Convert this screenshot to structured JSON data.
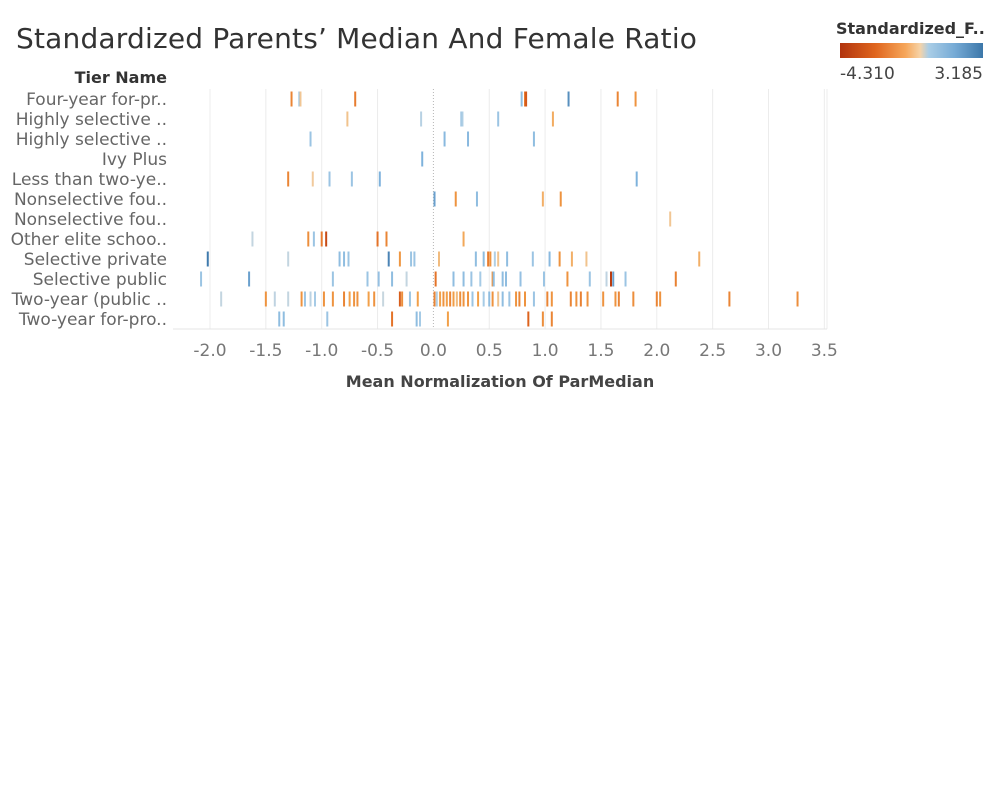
{
  "title": "Standardized Parents’ Median And Female Ratio",
  "legend": {
    "title": "Standardized_F..",
    "min_label": "-4.310",
    "max_label": "3.185",
    "color_low": "#b1340e",
    "color_mid": "#f6d3a7",
    "color_high": "#3c77a9"
  },
  "chart_data": {
    "type": "scatter",
    "mark": "tick",
    "row_header": "Tier Name",
    "xlabel": "Mean Normalization Of ParMedian",
    "xlim": [
      -2.3,
      3.5
    ],
    "xticks": [
      "-2.0",
      "-1.5",
      "-1.0",
      "-0.5",
      "0.0",
      "0.5",
      "1.0",
      "1.5",
      "2.0",
      "2.5",
      "3.0",
      "3.5"
    ],
    "color_range": [
      -4.31,
      3.185
    ],
    "grid": true,
    "rows": [
      {
        "label": "Four-year for-pr..",
        "points": [
          [
            -1.27,
            -1.8
          ],
          [
            -1.2,
            1.0
          ],
          [
            -1.19,
            -0.2
          ],
          [
            -0.7,
            -2.0
          ],
          [
            0.79,
            1.2
          ],
          [
            0.82,
            -2.0
          ],
          [
            0.83,
            -3.0
          ],
          [
            1.21,
            2.5
          ],
          [
            1.65,
            -1.8
          ],
          [
            1.81,
            -1.5
          ]
        ]
      },
      {
        "label": "Highly selective ..",
        "points": [
          [
            -0.77,
            -0.3
          ],
          [
            -0.11,
            0.4
          ],
          [
            0.25,
            1.0
          ],
          [
            0.26,
            0.6
          ],
          [
            0.58,
            1.0
          ],
          [
            1.07,
            -0.9
          ]
        ]
      },
      {
        "label": "Highly selective ..",
        "points": [
          [
            -1.1,
            1.0
          ],
          [
            0.1,
            1.3
          ],
          [
            0.31,
            1.3
          ],
          [
            0.9,
            1.2
          ]
        ]
      },
      {
        "label": "Ivy Plus",
        "points": [
          [
            -0.1,
            1.5
          ]
        ]
      },
      {
        "label": "Less than two-ye..",
        "points": [
          [
            -1.3,
            -1.8
          ],
          [
            -1.08,
            -0.1
          ],
          [
            -0.93,
            1.0
          ],
          [
            -0.73,
            1.0
          ],
          [
            -0.48,
            1.5
          ],
          [
            1.82,
            1.5
          ]
        ]
      },
      {
        "label": "Nonselective fou..",
        "points": [
          [
            0.01,
            2.0
          ],
          [
            0.2,
            -1.5
          ],
          [
            0.39,
            1.2
          ],
          [
            0.98,
            -0.8
          ],
          [
            1.14,
            -1.5
          ]
        ]
      },
      {
        "label": "Nonselective fou..",
        "points": [
          [
            2.12,
            -0.2
          ]
        ]
      },
      {
        "label": "Other elite schoo..",
        "points": [
          [
            -1.62,
            0.1
          ],
          [
            -1.12,
            -1.6
          ],
          [
            -1.07,
            1.0
          ],
          [
            -1.0,
            -2.0
          ],
          [
            -0.96,
            -3.5
          ],
          [
            -0.5,
            -2.2
          ],
          [
            -0.42,
            -1.8
          ],
          [
            0.27,
            -1.0
          ]
        ]
      },
      {
        "label": "Selective private",
        "points": [
          [
            -2.02,
            3.1
          ],
          [
            -1.3,
            0.1
          ],
          [
            -0.84,
            1.2
          ],
          [
            -0.8,
            1.2
          ],
          [
            -0.76,
            1.0
          ],
          [
            -0.4,
            2.8
          ],
          [
            -0.3,
            -1.4
          ],
          [
            -0.2,
            1.0
          ],
          [
            -0.17,
            1.0
          ],
          [
            0.05,
            -0.5
          ],
          [
            0.38,
            1.2
          ],
          [
            0.45,
            1.2
          ],
          [
            0.49,
            -2.0
          ],
          [
            0.51,
            -1.5
          ],
          [
            0.55,
            0.5
          ],
          [
            0.58,
            -0.3
          ],
          [
            0.66,
            1.2
          ],
          [
            0.89,
            1.0
          ],
          [
            1.04,
            1.3
          ],
          [
            1.13,
            -1.5
          ],
          [
            1.24,
            -0.8
          ],
          [
            1.37,
            -0.3
          ],
          [
            2.38,
            -0.8
          ]
        ]
      },
      {
        "label": "Selective public",
        "points": [
          [
            -2.08,
            1.0
          ],
          [
            -1.65,
            2.0
          ],
          [
            -0.9,
            1.0
          ],
          [
            -0.59,
            1.0
          ],
          [
            -0.49,
            1.1
          ],
          [
            -0.37,
            1.2
          ],
          [
            -0.24,
            0.1
          ],
          [
            0.02,
            -2.2
          ],
          [
            0.18,
            1.2
          ],
          [
            0.27,
            1.2
          ],
          [
            0.34,
            1.0
          ],
          [
            0.42,
            0.8
          ],
          [
            0.53,
            -1.5
          ],
          [
            0.54,
            1.2
          ],
          [
            0.62,
            1.2
          ],
          [
            0.65,
            1.2
          ],
          [
            0.78,
            1.1
          ],
          [
            0.99,
            1.0
          ],
          [
            1.2,
            -1.5
          ],
          [
            1.4,
            1.0
          ],
          [
            1.55,
            0.2
          ],
          [
            1.59,
            -4.0
          ],
          [
            1.61,
            2.0
          ],
          [
            1.72,
            1.0
          ],
          [
            2.17,
            -1.9
          ]
        ]
      },
      {
        "label": "Two-year (public ..",
        "points": [
          [
            -1.9,
            0.1
          ],
          [
            -1.5,
            -1.5
          ],
          [
            -1.42,
            0.2
          ],
          [
            -1.3,
            0.1
          ],
          [
            -1.18,
            -1.5
          ],
          [
            -1.15,
            1.0
          ],
          [
            -1.1,
            0.3
          ],
          [
            -1.06,
            0.8
          ],
          [
            -0.98,
            -1.5
          ],
          [
            -0.9,
            -1.5
          ],
          [
            -0.8,
            -1.8
          ],
          [
            -0.75,
            -1.2
          ],
          [
            -0.71,
            -1.5
          ],
          [
            -0.68,
            -1.5
          ],
          [
            -0.58,
            -1.2
          ],
          [
            -0.53,
            -1.5
          ],
          [
            -0.45,
            0.0
          ],
          [
            -0.3,
            -2.8
          ],
          [
            -0.28,
            -1.6
          ],
          [
            -0.21,
            1.0
          ],
          [
            -0.14,
            -1.2
          ],
          [
            0.01,
            -1.8
          ],
          [
            0.03,
            0.5
          ],
          [
            0.06,
            -1.2
          ],
          [
            0.09,
            -1.5
          ],
          [
            0.12,
            -1.2
          ],
          [
            0.15,
            -1.8
          ],
          [
            0.18,
            -1.3
          ],
          [
            0.21,
            -0.5
          ],
          [
            0.24,
            -1.6
          ],
          [
            0.27,
            -1.5
          ],
          [
            0.31,
            -1.5
          ],
          [
            0.35,
            1.0
          ],
          [
            0.4,
            -1.2
          ],
          [
            0.45,
            0.8
          ],
          [
            0.5,
            1.2
          ],
          [
            0.53,
            -1.5
          ],
          [
            0.58,
            -0.3
          ],
          [
            0.62,
            1.2
          ],
          [
            0.68,
            1.0
          ],
          [
            0.74,
            -1.5
          ],
          [
            0.77,
            -1.8
          ],
          [
            0.82,
            -1.5
          ],
          [
            0.9,
            1.0
          ],
          [
            1.02,
            -1.8
          ],
          [
            1.06,
            -1.5
          ],
          [
            1.23,
            -1.8
          ],
          [
            1.28,
            -1.5
          ],
          [
            1.32,
            -1.9
          ],
          [
            1.38,
            -1.5
          ],
          [
            1.52,
            -1.5
          ],
          [
            1.63,
            -1.5
          ],
          [
            1.66,
            -1.8
          ],
          [
            1.79,
            -1.6
          ],
          [
            2.0,
            -1.8
          ],
          [
            2.03,
            -1.5
          ],
          [
            2.65,
            -1.8
          ],
          [
            3.26,
            -1.6
          ]
        ]
      },
      {
        "label": "Two-year for-pro..",
        "points": [
          [
            -1.38,
            1.2
          ],
          [
            -1.34,
            1.2
          ],
          [
            -0.95,
            1.0
          ],
          [
            -0.37,
            -2.2
          ],
          [
            -0.15,
            1.2
          ],
          [
            -0.12,
            0.8
          ],
          [
            0.13,
            -1.2
          ],
          [
            0.85,
            -2.6
          ],
          [
            0.98,
            -1.6
          ],
          [
            1.06,
            -1.8
          ]
        ]
      }
    ]
  }
}
